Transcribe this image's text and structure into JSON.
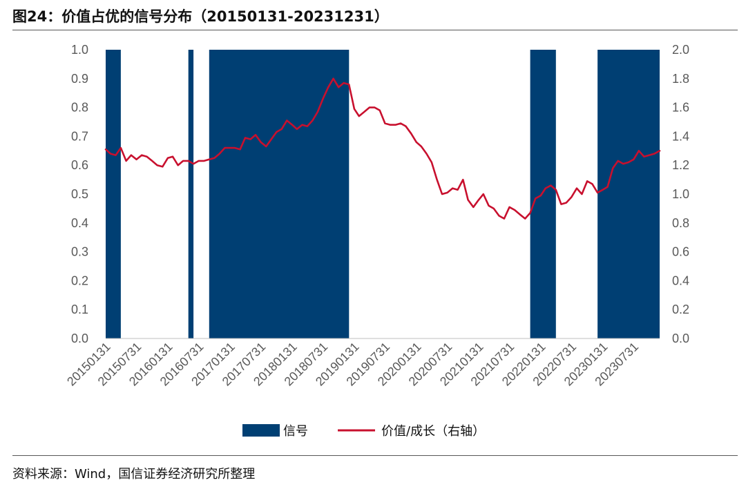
{
  "header": {
    "title": "图24：价值占优的信号分布（20150131-20231231）"
  },
  "footer": {
    "source": "资料来源：Wind，国信证券经济研究所整理"
  },
  "chart_data": {
    "type": "bar+line",
    "title": "图24：价值占优的信号分布（20150131-20231231）",
    "x_ticks": [
      "20150131",
      "20150731",
      "20160131",
      "20160731",
      "20170131",
      "20170731",
      "20180131",
      "20180731",
      "20190131",
      "20190731",
      "20200131",
      "20200731",
      "20210131",
      "20210731",
      "20220131",
      "20220731",
      "20230131",
      "20230731"
    ],
    "x_range": [
      "2015-01-31",
      "2023-12-31"
    ],
    "y_left": {
      "ylim": [
        0,
        1.0
      ],
      "ticks": [
        "1.0",
        "0.9",
        "0.8",
        "0.7",
        "0.6",
        "0.5",
        "0.4",
        "0.3",
        "0.2",
        "0.1",
        "0.0"
      ]
    },
    "y_right": {
      "ylim": [
        0,
        2.0
      ],
      "ticks": [
        "2.0",
        "1.8",
        "1.6",
        "1.4",
        "1.2",
        "1.0",
        "0.8",
        "0.6",
        "0.4",
        "0.2",
        "0.0"
      ]
    },
    "series": [
      {
        "name": "信号",
        "kind": "bar-area",
        "axis": "left",
        "color": "#003F73",
        "intervals": [
          {
            "start": "2015-01-31",
            "end": "2015-04-30",
            "value": 1
          },
          {
            "start": "2016-05-31",
            "end": "2016-06-30",
            "value": 1
          },
          {
            "start": "2016-09-30",
            "end": "2018-12-31",
            "value": 1
          },
          {
            "start": "2021-11-30",
            "end": "2022-04-30",
            "value": 1
          },
          {
            "start": "2022-12-31",
            "end": "2023-12-31",
            "value": 1
          }
        ]
      },
      {
        "name": "价值/成长（右轴）",
        "kind": "line",
        "axis": "right",
        "color": "#C8102E",
        "points": [
          [
            "2015-01-31",
            1.31
          ],
          [
            "2015-02-28",
            1.28
          ],
          [
            "2015-03-31",
            1.27
          ],
          [
            "2015-04-30",
            1.32
          ],
          [
            "2015-05-31",
            1.23
          ],
          [
            "2015-06-30",
            1.27
          ],
          [
            "2015-07-31",
            1.24
          ],
          [
            "2015-08-31",
            1.27
          ],
          [
            "2015-09-30",
            1.26
          ],
          [
            "2015-10-31",
            1.23
          ],
          [
            "2015-11-30",
            1.2
          ],
          [
            "2015-12-31",
            1.19
          ],
          [
            "2016-01-31",
            1.25
          ],
          [
            "2016-02-29",
            1.26
          ],
          [
            "2016-03-31",
            1.2
          ],
          [
            "2016-04-30",
            1.23
          ],
          [
            "2016-05-31",
            1.23
          ],
          [
            "2016-06-30",
            1.21
          ],
          [
            "2016-07-31",
            1.23
          ],
          [
            "2016-08-31",
            1.23
          ],
          [
            "2016-09-30",
            1.24
          ],
          [
            "2016-10-31",
            1.25
          ],
          [
            "2016-11-30",
            1.28
          ],
          [
            "2016-12-31",
            1.32
          ],
          [
            "2017-01-31",
            1.32
          ],
          [
            "2017-02-28",
            1.32
          ],
          [
            "2017-03-31",
            1.31
          ],
          [
            "2017-04-30",
            1.39
          ],
          [
            "2017-05-31",
            1.38
          ],
          [
            "2017-06-30",
            1.41
          ],
          [
            "2017-07-31",
            1.36
          ],
          [
            "2017-08-31",
            1.33
          ],
          [
            "2017-09-30",
            1.38
          ],
          [
            "2017-10-31",
            1.43
          ],
          [
            "2017-11-30",
            1.45
          ],
          [
            "2017-12-31",
            1.51
          ],
          [
            "2018-01-31",
            1.48
          ],
          [
            "2018-02-28",
            1.45
          ],
          [
            "2018-03-31",
            1.48
          ],
          [
            "2018-04-30",
            1.47
          ],
          [
            "2018-05-31",
            1.51
          ],
          [
            "2018-06-30",
            1.57
          ],
          [
            "2018-07-31",
            1.66
          ],
          [
            "2018-08-31",
            1.74
          ],
          [
            "2018-09-30",
            1.8
          ],
          [
            "2018-10-31",
            1.74
          ],
          [
            "2018-11-30",
            1.77
          ],
          [
            "2018-12-31",
            1.76
          ],
          [
            "2019-01-31",
            1.59
          ],
          [
            "2019-02-28",
            1.54
          ],
          [
            "2019-03-31",
            1.57
          ],
          [
            "2019-04-30",
            1.6
          ],
          [
            "2019-05-31",
            1.6
          ],
          [
            "2019-06-30",
            1.58
          ],
          [
            "2019-07-31",
            1.49
          ],
          [
            "2019-08-31",
            1.48
          ],
          [
            "2019-09-30",
            1.48
          ],
          [
            "2019-10-31",
            1.49
          ],
          [
            "2019-11-30",
            1.47
          ],
          [
            "2019-12-31",
            1.42
          ],
          [
            "2020-01-31",
            1.36
          ],
          [
            "2020-02-29",
            1.33
          ],
          [
            "2020-03-31",
            1.28
          ],
          [
            "2020-04-30",
            1.22
          ],
          [
            "2020-05-31",
            1.1
          ],
          [
            "2020-06-30",
            1.0
          ],
          [
            "2020-07-31",
            1.01
          ],
          [
            "2020-08-31",
            1.04
          ],
          [
            "2020-09-30",
            1.03
          ],
          [
            "2020-10-31",
            1.1
          ],
          [
            "2020-11-30",
            0.96
          ],
          [
            "2020-12-31",
            0.91
          ],
          [
            "2021-01-31",
            0.96
          ],
          [
            "2021-02-28",
            1.0
          ],
          [
            "2021-03-31",
            0.92
          ],
          [
            "2021-04-30",
            0.9
          ],
          [
            "2021-05-31",
            0.85
          ],
          [
            "2021-06-30",
            0.83
          ],
          [
            "2021-07-31",
            0.91
          ],
          [
            "2021-08-31",
            0.89
          ],
          [
            "2021-09-30",
            0.86
          ],
          [
            "2021-10-31",
            0.83
          ],
          [
            "2021-11-30",
            0.87
          ],
          [
            "2021-12-31",
            0.97
          ],
          [
            "2022-01-31",
            0.99
          ],
          [
            "2022-02-28",
            1.04
          ],
          [
            "2022-03-31",
            1.06
          ],
          [
            "2022-04-30",
            1.03
          ],
          [
            "2022-05-31",
            0.93
          ],
          [
            "2022-06-30",
            0.94
          ],
          [
            "2022-07-31",
            0.98
          ],
          [
            "2022-08-31",
            1.04
          ],
          [
            "2022-09-30",
            1.0
          ],
          [
            "2022-10-31",
            1.09
          ],
          [
            "2022-11-30",
            1.07
          ],
          [
            "2022-12-31",
            1.01
          ],
          [
            "2023-01-31",
            1.03
          ],
          [
            "2023-02-28",
            1.05
          ],
          [
            "2023-03-31",
            1.18
          ],
          [
            "2023-04-30",
            1.23
          ],
          [
            "2023-05-31",
            1.21
          ],
          [
            "2023-06-30",
            1.22
          ],
          [
            "2023-07-31",
            1.24
          ],
          [
            "2023-08-31",
            1.3
          ],
          [
            "2023-09-30",
            1.26
          ],
          [
            "2023-10-31",
            1.27
          ],
          [
            "2023-11-30",
            1.28
          ],
          [
            "2023-12-31",
            1.3
          ]
        ]
      }
    ],
    "legend": {
      "position": "bottom-center",
      "entries": [
        "信号",
        "价值/成长（右轴）"
      ]
    },
    "grid": false
  }
}
